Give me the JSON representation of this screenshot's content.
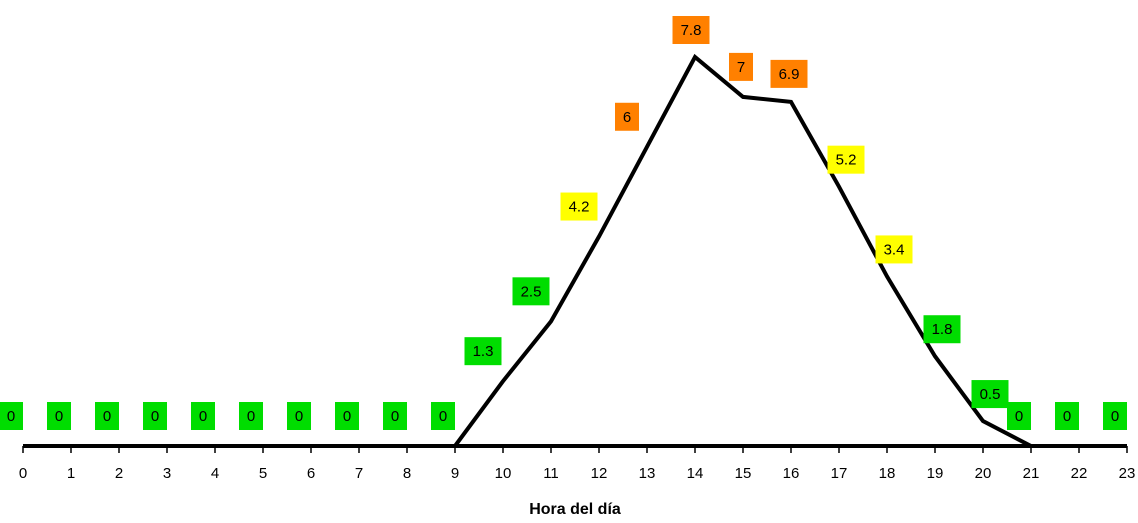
{
  "chart_data": {
    "type": "line",
    "xlabel": "Hora del día",
    "ylabel": "",
    "x": [
      0,
      1,
      2,
      3,
      4,
      5,
      6,
      7,
      8,
      9,
      10,
      11,
      12,
      13,
      14,
      15,
      16,
      17,
      18,
      19,
      20,
      21,
      22,
      23
    ],
    "x_tick_labels": [
      "0",
      "1",
      "2",
      "3",
      "4",
      "5",
      "6",
      "7",
      "8",
      "9",
      "10",
      "11",
      "12",
      "13",
      "14",
      "15",
      "16",
      "17",
      "18",
      "19",
      "20",
      "21",
      "22",
      "23"
    ],
    "series": [
      {
        "values": [
          0,
          0,
          0,
          0,
          0,
          0,
          0,
          0,
          0,
          0,
          1.3,
          2.5,
          4.2,
          6,
          7.8,
          7,
          6.9,
          5.2,
          3.4,
          1.8,
          0.5,
          0,
          0,
          0
        ],
        "data_labels": [
          "0",
          "0",
          "0",
          "0",
          "0",
          "0",
          "0",
          "0",
          "0",
          "0",
          "1.3",
          "2.5",
          "4.2",
          "6",
          "7.8",
          "7",
          "6.9",
          "5.2",
          "3.4",
          "1.8",
          "0.5",
          "0",
          "0",
          "0"
        ]
      }
    ],
    "ylim": [
      0,
      8
    ],
    "line_color": "#000000",
    "label_colors": {
      "low": "#00dd00",
      "moderate": "#ffff00",
      "high": "#ff8000"
    },
    "grid": false,
    "legend": "none"
  }
}
